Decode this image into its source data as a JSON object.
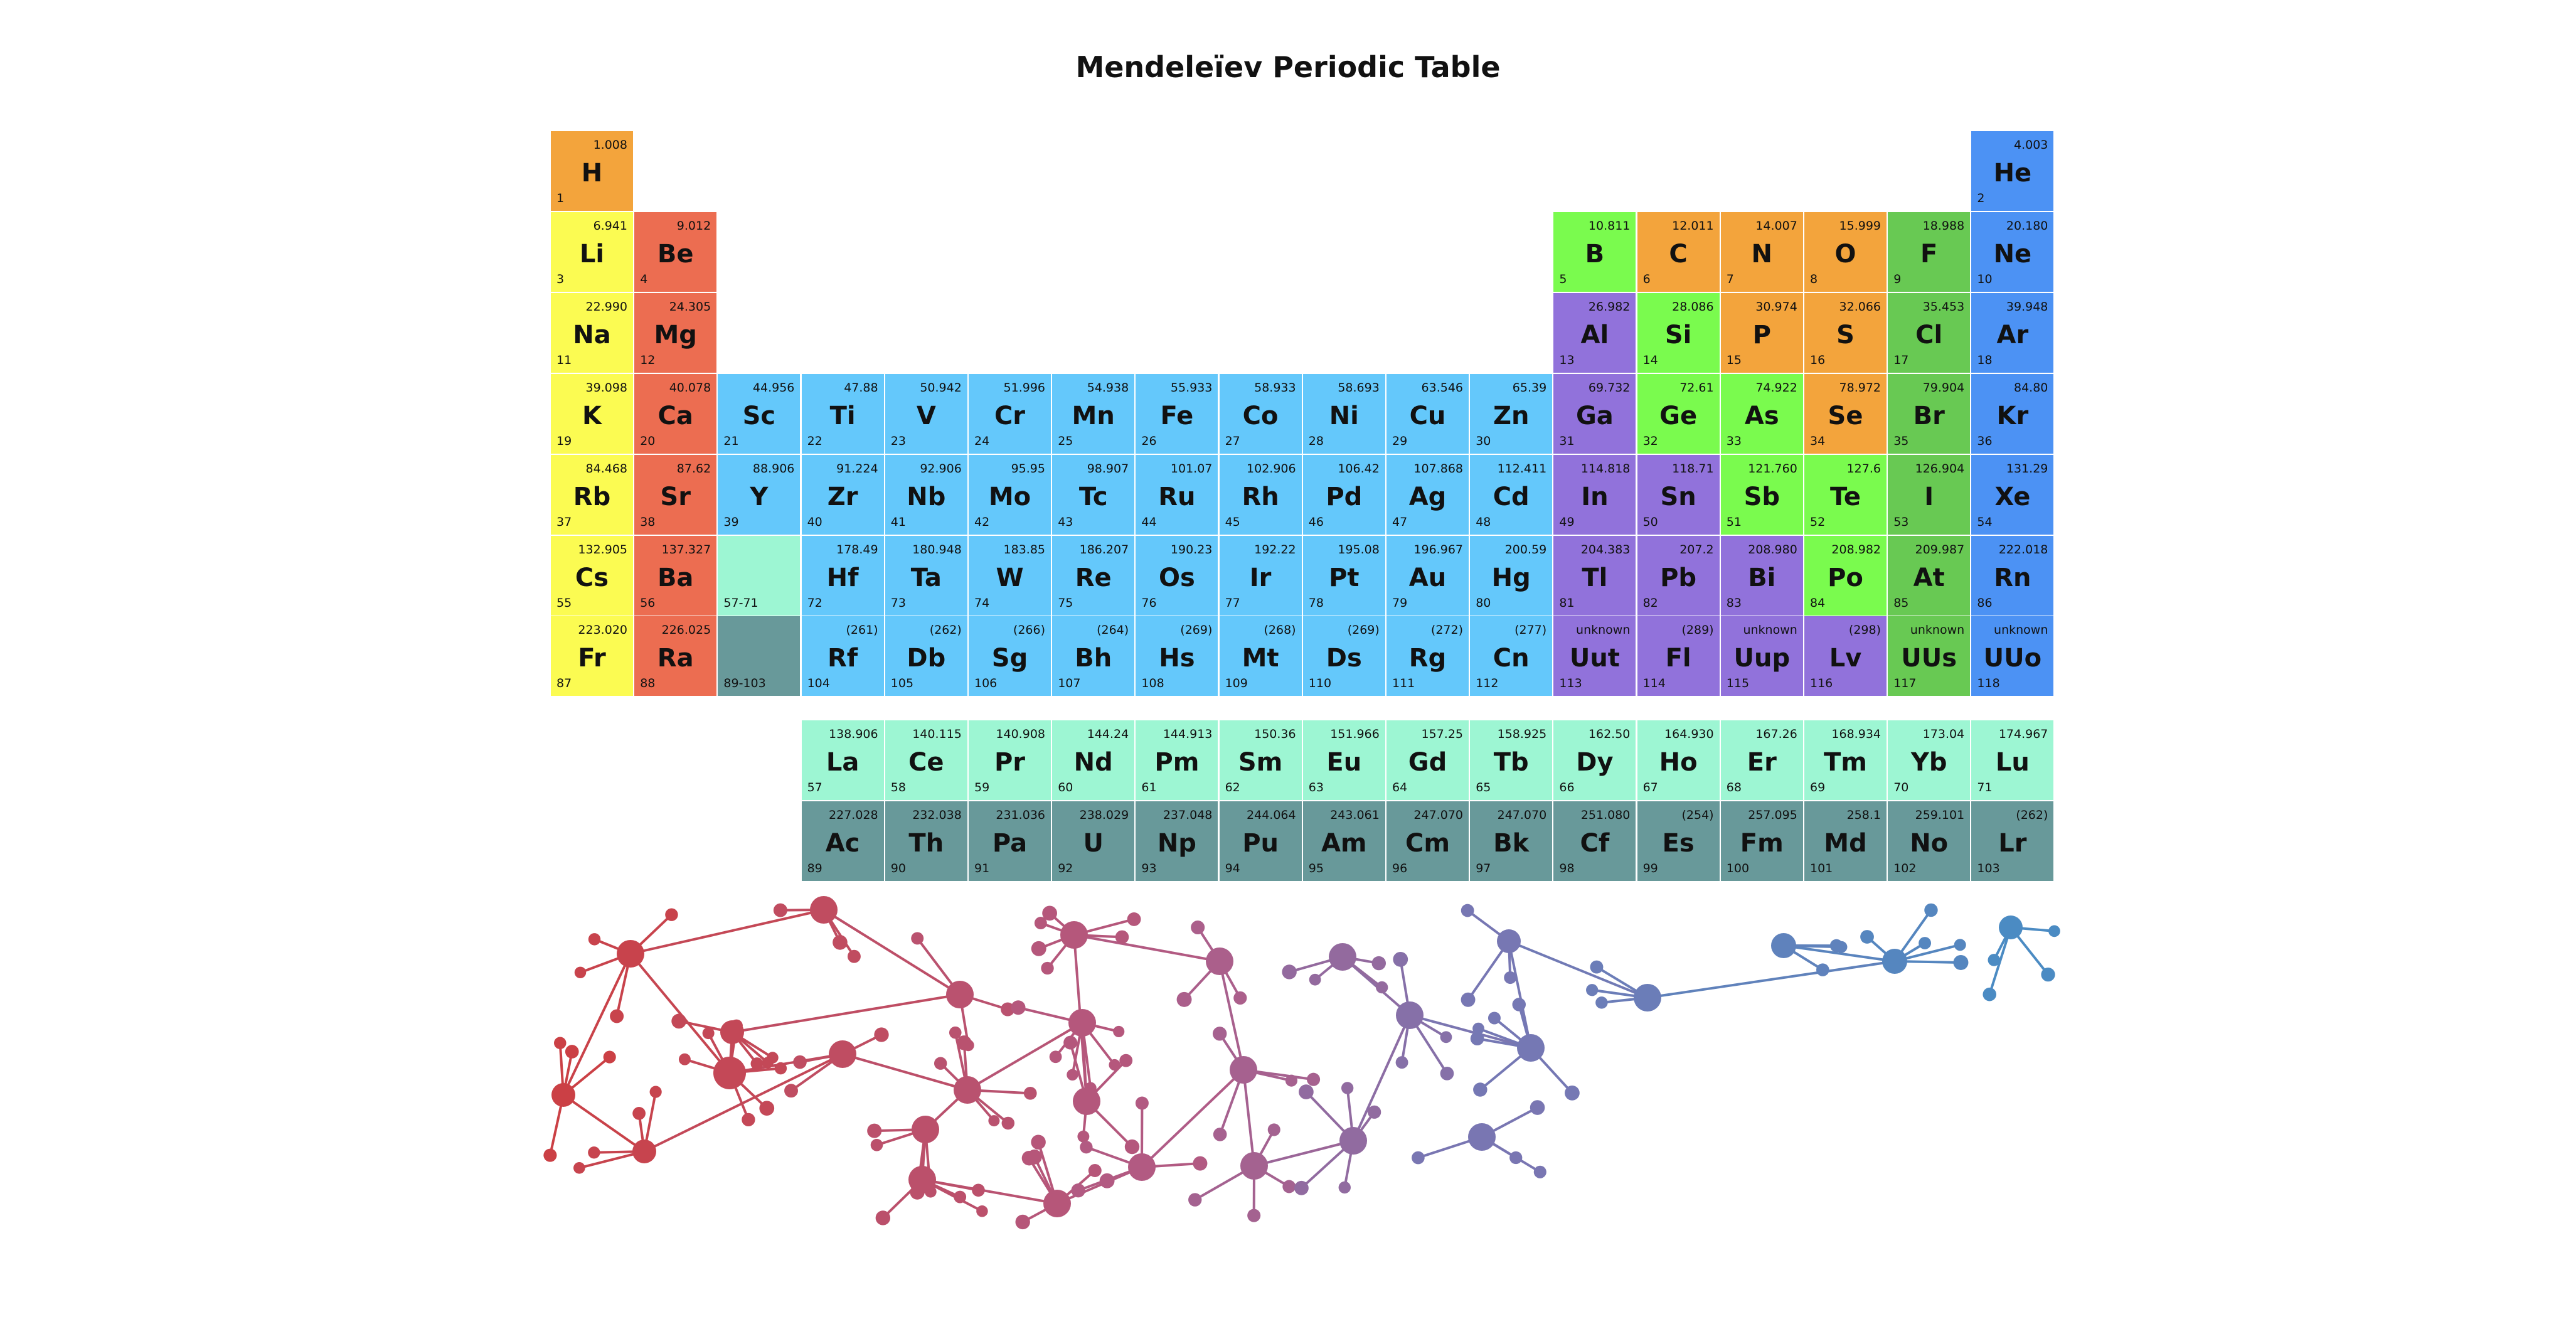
{
  "title": "Mendeleïev Periodic Table",
  "colors": {
    "nonmetal": "#F3A43C",
    "alkali": "#FBFB52",
    "alkaline": "#EC6D51",
    "transition": "#64C8FB",
    "post": "#9172DB",
    "metalloid": "#7AFB4E",
    "halogen": "#68C953",
    "noble": "#4C92F4",
    "lanthanide": "#9DF6D3",
    "actinide": "#68999A"
  },
  "elements": [
    {
      "s": "H",
      "n": "1",
      "w": "1.008",
      "r": 0,
      "c": 0,
      "cat": "nonmetal"
    },
    {
      "s": "He",
      "n": "2",
      "w": "4.003",
      "r": 0,
      "c": 17,
      "cat": "noble"
    },
    {
      "s": "Li",
      "n": "3",
      "w": "6.941",
      "r": 1,
      "c": 0,
      "cat": "alkali"
    },
    {
      "s": "Be",
      "n": "4",
      "w": "9.012",
      "r": 1,
      "c": 1,
      "cat": "alkaline"
    },
    {
      "s": "B",
      "n": "5",
      "w": "10.811",
      "r": 1,
      "c": 12,
      "cat": "metalloid"
    },
    {
      "s": "C",
      "n": "6",
      "w": "12.011",
      "r": 1,
      "c": 13,
      "cat": "nonmetal"
    },
    {
      "s": "N",
      "n": "7",
      "w": "14.007",
      "r": 1,
      "c": 14,
      "cat": "nonmetal"
    },
    {
      "s": "O",
      "n": "8",
      "w": "15.999",
      "r": 1,
      "c": 15,
      "cat": "nonmetal"
    },
    {
      "s": "F",
      "n": "9",
      "w": "18.988",
      "r": 1,
      "c": 16,
      "cat": "halogen"
    },
    {
      "s": "Ne",
      "n": "10",
      "w": "20.180",
      "r": 1,
      "c": 17,
      "cat": "noble"
    },
    {
      "s": "Na",
      "n": "11",
      "w": "22.990",
      "r": 2,
      "c": 0,
      "cat": "alkali"
    },
    {
      "s": "Mg",
      "n": "12",
      "w": "24.305",
      "r": 2,
      "c": 1,
      "cat": "alkaline"
    },
    {
      "s": "Al",
      "n": "13",
      "w": "26.982",
      "r": 2,
      "c": 12,
      "cat": "post"
    },
    {
      "s": "Si",
      "n": "14",
      "w": "28.086",
      "r": 2,
      "c": 13,
      "cat": "metalloid"
    },
    {
      "s": "P",
      "n": "15",
      "w": "30.974",
      "r": 2,
      "c": 14,
      "cat": "nonmetal"
    },
    {
      "s": "S",
      "n": "16",
      "w": "32.066",
      "r": 2,
      "c": 15,
      "cat": "nonmetal"
    },
    {
      "s": "Cl",
      "n": "17",
      "w": "35.453",
      "r": 2,
      "c": 16,
      "cat": "halogen"
    },
    {
      "s": "Ar",
      "n": "18",
      "w": "39.948",
      "r": 2,
      "c": 17,
      "cat": "noble"
    },
    {
      "s": "K",
      "n": "19",
      "w": "39.098",
      "r": 3,
      "c": 0,
      "cat": "alkali"
    },
    {
      "s": "Ca",
      "n": "20",
      "w": "40.078",
      "r": 3,
      "c": 1,
      "cat": "alkaline"
    },
    {
      "s": "Sc",
      "n": "21",
      "w": "44.956",
      "r": 3,
      "c": 2,
      "cat": "transition"
    },
    {
      "s": "Ti",
      "n": "22",
      "w": "47.88",
      "r": 3,
      "c": 3,
      "cat": "transition"
    },
    {
      "s": "V",
      "n": "23",
      "w": "50.942",
      "r": 3,
      "c": 4,
      "cat": "transition"
    },
    {
      "s": "Cr",
      "n": "24",
      "w": "51.996",
      "r": 3,
      "c": 5,
      "cat": "transition"
    },
    {
      "s": "Mn",
      "n": "25",
      "w": "54.938",
      "r": 3,
      "c": 6,
      "cat": "transition"
    },
    {
      "s": "Fe",
      "n": "26",
      "w": "55.933",
      "r": 3,
      "c": 7,
      "cat": "transition"
    },
    {
      "s": "Co",
      "n": "27",
      "w": "58.933",
      "r": 3,
      "c": 8,
      "cat": "transition"
    },
    {
      "s": "Ni",
      "n": "28",
      "w": "58.693",
      "r": 3,
      "c": 9,
      "cat": "transition"
    },
    {
      "s": "Cu",
      "n": "29",
      "w": "63.546",
      "r": 3,
      "c": 10,
      "cat": "transition"
    },
    {
      "s": "Zn",
      "n": "30",
      "w": "65.39",
      "r": 3,
      "c": 11,
      "cat": "transition"
    },
    {
      "s": "Ga",
      "n": "31",
      "w": "69.732",
      "r": 3,
      "c": 12,
      "cat": "post"
    },
    {
      "s": "Ge",
      "n": "32",
      "w": "72.61",
      "r": 3,
      "c": 13,
      "cat": "metalloid"
    },
    {
      "s": "As",
      "n": "33",
      "w": "74.922",
      "r": 3,
      "c": 14,
      "cat": "metalloid"
    },
    {
      "s": "Se",
      "n": "34",
      "w": "78.972",
      "r": 3,
      "c": 15,
      "cat": "nonmetal"
    },
    {
      "s": "Br",
      "n": "35",
      "w": "79.904",
      "r": 3,
      "c": 16,
      "cat": "halogen"
    },
    {
      "s": "Kr",
      "n": "36",
      "w": "84.80",
      "r": 3,
      "c": 17,
      "cat": "noble"
    },
    {
      "s": "Rb",
      "n": "37",
      "w": "84.468",
      "r": 4,
      "c": 0,
      "cat": "alkali"
    },
    {
      "s": "Sr",
      "n": "38",
      "w": "87.62",
      "r": 4,
      "c": 1,
      "cat": "alkaline"
    },
    {
      "s": "Y",
      "n": "39",
      "w": "88.906",
      "r": 4,
      "c": 2,
      "cat": "transition"
    },
    {
      "s": "Zr",
      "n": "40",
      "w": "91.224",
      "r": 4,
      "c": 3,
      "cat": "transition"
    },
    {
      "s": "Nb",
      "n": "41",
      "w": "92.906",
      "r": 4,
      "c": 4,
      "cat": "transition"
    },
    {
      "s": "Mo",
      "n": "42",
      "w": "95.95",
      "r": 4,
      "c": 5,
      "cat": "transition"
    },
    {
      "s": "Tc",
      "n": "43",
      "w": "98.907",
      "r": 4,
      "c": 6,
      "cat": "transition"
    },
    {
      "s": "Ru",
      "n": "44",
      "w": "101.07",
      "r": 4,
      "c": 7,
      "cat": "transition"
    },
    {
      "s": "Rh",
      "n": "45",
      "w": "102.906",
      "r": 4,
      "c": 8,
      "cat": "transition"
    },
    {
      "s": "Pd",
      "n": "46",
      "w": "106.42",
      "r": 4,
      "c": 9,
      "cat": "transition"
    },
    {
      "s": "Ag",
      "n": "47",
      "w": "107.868",
      "r": 4,
      "c": 10,
      "cat": "transition"
    },
    {
      "s": "Cd",
      "n": "48",
      "w": "112.411",
      "r": 4,
      "c": 11,
      "cat": "transition"
    },
    {
      "s": "In",
      "n": "49",
      "w": "114.818",
      "r": 4,
      "c": 12,
      "cat": "post"
    },
    {
      "s": "Sn",
      "n": "50",
      "w": "118.71",
      "r": 4,
      "c": 13,
      "cat": "post"
    },
    {
      "s": "Sb",
      "n": "51",
      "w": "121.760",
      "r": 4,
      "c": 14,
      "cat": "metalloid"
    },
    {
      "s": "Te",
      "n": "52",
      "w": "127.6",
      "r": 4,
      "c": 15,
      "cat": "metalloid"
    },
    {
      "s": "I",
      "n": "53",
      "w": "126.904",
      "r": 4,
      "c": 16,
      "cat": "halogen"
    },
    {
      "s": "Xe",
      "n": "54",
      "w": "131.29",
      "r": 4,
      "c": 17,
      "cat": "noble"
    },
    {
      "s": "Cs",
      "n": "55",
      "w": "132.905",
      "r": 5,
      "c": 0,
      "cat": "alkali"
    },
    {
      "s": "Ba",
      "n": "56",
      "w": "137.327",
      "r": 5,
      "c": 1,
      "cat": "alkaline"
    },
    {
      "s": "",
      "n": "57-71",
      "w": "",
      "r": 5,
      "c": 2,
      "cat": "lanthanide"
    },
    {
      "s": "Hf",
      "n": "72",
      "w": "178.49",
      "r": 5,
      "c": 3,
      "cat": "transition"
    },
    {
      "s": "Ta",
      "n": "73",
      "w": "180.948",
      "r": 5,
      "c": 4,
      "cat": "transition"
    },
    {
      "s": "W",
      "n": "74",
      "w": "183.85",
      "r": 5,
      "c": 5,
      "cat": "transition"
    },
    {
      "s": "Re",
      "n": "75",
      "w": "186.207",
      "r": 5,
      "c": 6,
      "cat": "transition"
    },
    {
      "s": "Os",
      "n": "76",
      "w": "190.23",
      "r": 5,
      "c": 7,
      "cat": "transition"
    },
    {
      "s": "Ir",
      "n": "77",
      "w": "192.22",
      "r": 5,
      "c": 8,
      "cat": "transition"
    },
    {
      "s": "Pt",
      "n": "78",
      "w": "195.08",
      "r": 5,
      "c": 9,
      "cat": "transition"
    },
    {
      "s": "Au",
      "n": "79",
      "w": "196.967",
      "r": 5,
      "c": 10,
      "cat": "transition"
    },
    {
      "s": "Hg",
      "n": "80",
      "w": "200.59",
      "r": 5,
      "c": 11,
      "cat": "transition"
    },
    {
      "s": "Tl",
      "n": "81",
      "w": "204.383",
      "r": 5,
      "c": 12,
      "cat": "post"
    },
    {
      "s": "Pb",
      "n": "82",
      "w": "207.2",
      "r": 5,
      "c": 13,
      "cat": "post"
    },
    {
      "s": "Bi",
      "n": "83",
      "w": "208.980",
      "r": 5,
      "c": 14,
      "cat": "post"
    },
    {
      "s": "Po",
      "n": "84",
      "w": "208.982",
      "r": 5,
      "c": 15,
      "cat": "metalloid"
    },
    {
      "s": "At",
      "n": "85",
      "w": "209.987",
      "r": 5,
      "c": 16,
      "cat": "halogen"
    },
    {
      "s": "Rn",
      "n": "86",
      "w": "222.018",
      "r": 5,
      "c": 17,
      "cat": "noble"
    },
    {
      "s": "Fr",
      "n": "87",
      "w": "223.020",
      "r": 6,
      "c": 0,
      "cat": "alkali"
    },
    {
      "s": "Ra",
      "n": "88",
      "w": "226.025",
      "r": 6,
      "c": 1,
      "cat": "alkaline"
    },
    {
      "s": "",
      "n": "89-103",
      "w": "",
      "r": 6,
      "c": 2,
      "cat": "actinide"
    },
    {
      "s": "Rf",
      "n": "104",
      "w": "(261)",
      "r": 6,
      "c": 3,
      "cat": "transition"
    },
    {
      "s": "Db",
      "n": "105",
      "w": "(262)",
      "r": 6,
      "c": 4,
      "cat": "transition"
    },
    {
      "s": "Sg",
      "n": "106",
      "w": "(266)",
      "r": 6,
      "c": 5,
      "cat": "transition"
    },
    {
      "s": "Bh",
      "n": "107",
      "w": "(264)",
      "r": 6,
      "c": 6,
      "cat": "transition"
    },
    {
      "s": "Hs",
      "n": "108",
      "w": "(269)",
      "r": 6,
      "c": 7,
      "cat": "transition"
    },
    {
      "s": "Mt",
      "n": "109",
      "w": "(268)",
      "r": 6,
      "c": 8,
      "cat": "transition"
    },
    {
      "s": "Ds",
      "n": "110",
      "w": "(269)",
      "r": 6,
      "c": 9,
      "cat": "transition"
    },
    {
      "s": "Rg",
      "n": "111",
      "w": "(272)",
      "r": 6,
      "c": 10,
      "cat": "transition"
    },
    {
      "s": "Cn",
      "n": "112",
      "w": "(277)",
      "r": 6,
      "c": 11,
      "cat": "transition"
    },
    {
      "s": "Uut",
      "n": "113",
      "w": "unknown",
      "r": 6,
      "c": 12,
      "cat": "post"
    },
    {
      "s": "Fl",
      "n": "114",
      "w": "(289)",
      "r": 6,
      "c": 13,
      "cat": "post"
    },
    {
      "s": "Uup",
      "n": "115",
      "w": "unknown",
      "r": 6,
      "c": 14,
      "cat": "post"
    },
    {
      "s": "Lv",
      "n": "116",
      "w": "(298)",
      "r": 6,
      "c": 15,
      "cat": "post"
    },
    {
      "s": "UUs",
      "n": "117",
      "w": "unknown",
      "r": 6,
      "c": 16,
      "cat": "halogen"
    },
    {
      "s": "UUo",
      "n": "118",
      "w": "unknown",
      "r": 6,
      "c": 17,
      "cat": "noble"
    },
    {
      "s": "La",
      "n": "57",
      "w": "138.906",
      "r": 7,
      "c": 3,
      "cat": "lanthanide"
    },
    {
      "s": "Ce",
      "n": "58",
      "w": "140.115",
      "r": 7,
      "c": 4,
      "cat": "lanthanide"
    },
    {
      "s": "Pr",
      "n": "59",
      "w": "140.908",
      "r": 7,
      "c": 5,
      "cat": "lanthanide"
    },
    {
      "s": "Nd",
      "n": "60",
      "w": "144.24",
      "r": 7,
      "c": 6,
      "cat": "lanthanide"
    },
    {
      "s": "Pm",
      "n": "61",
      "w": "144.913",
      "r": 7,
      "c": 7,
      "cat": "lanthanide"
    },
    {
      "s": "Sm",
      "n": "62",
      "w": "150.36",
      "r": 7,
      "c": 8,
      "cat": "lanthanide"
    },
    {
      "s": "Eu",
      "n": "63",
      "w": "151.966",
      "r": 7,
      "c": 9,
      "cat": "lanthanide"
    },
    {
      "s": "Gd",
      "n": "64",
      "w": "157.25",
      "r": 7,
      "c": 10,
      "cat": "lanthanide"
    },
    {
      "s": "Tb",
      "n": "65",
      "w": "158.925",
      "r": 7,
      "c": 11,
      "cat": "lanthanide"
    },
    {
      "s": "Dy",
      "n": "66",
      "w": "162.50",
      "r": 7,
      "c": 12,
      "cat": "lanthanide"
    },
    {
      "s": "Ho",
      "n": "67",
      "w": "164.930",
      "r": 7,
      "c": 13,
      "cat": "lanthanide"
    },
    {
      "s": "Er",
      "n": "68",
      "w": "167.26",
      "r": 7,
      "c": 14,
      "cat": "lanthanide"
    },
    {
      "s": "Tm",
      "n": "69",
      "w": "168.934",
      "r": 7,
      "c": 15,
      "cat": "lanthanide"
    },
    {
      "s": "Yb",
      "n": "70",
      "w": "173.04",
      "r": 7,
      "c": 16,
      "cat": "lanthanide"
    },
    {
      "s": "Lu",
      "n": "71",
      "w": "174.967",
      "r": 7,
      "c": 17,
      "cat": "lanthanide"
    },
    {
      "s": "Ac",
      "n": "89",
      "w": "227.028",
      "r": 8,
      "c": 3,
      "cat": "actinide"
    },
    {
      "s": "Th",
      "n": "90",
      "w": "232.038",
      "r": 8,
      "c": 4,
      "cat": "actinide"
    },
    {
      "s": "Pa",
      "n": "91",
      "w": "231.036",
      "r": 8,
      "c": 5,
      "cat": "actinide"
    },
    {
      "s": "U",
      "n": "92",
      "w": "238.029",
      "r": 8,
      "c": 6,
      "cat": "actinide"
    },
    {
      "s": "Np",
      "n": "93",
      "w": "237.048",
      "r": 8,
      "c": 7,
      "cat": "actinide"
    },
    {
      "s": "Pu",
      "n": "94",
      "w": "244.064",
      "r": 8,
      "c": 8,
      "cat": "actinide"
    },
    {
      "s": "Am",
      "n": "95",
      "w": "243.061",
      "r": 8,
      "c": 9,
      "cat": "actinide"
    },
    {
      "s": "Cm",
      "n": "96",
      "w": "247.070",
      "r": 8,
      "c": 10,
      "cat": "actinide"
    },
    {
      "s": "Bk",
      "n": "97",
      "w": "247.070",
      "r": 8,
      "c": 11,
      "cat": "actinide"
    },
    {
      "s": "Cf",
      "n": "98",
      "w": "251.080",
      "r": 8,
      "c": 12,
      "cat": "actinide"
    },
    {
      "s": "Es",
      "n": "99",
      "w": "(254)",
      "r": 8,
      "c": 13,
      "cat": "actinide"
    },
    {
      "s": "Fm",
      "n": "100",
      "w": "257.095",
      "r": 8,
      "c": 14,
      "cat": "actinide"
    },
    {
      "s": "Md",
      "n": "101",
      "w": "258.1",
      "r": 8,
      "c": 15,
      "cat": "actinide"
    },
    {
      "s": "No",
      "n": "102",
      "w": "259.101",
      "r": 8,
      "c": 16,
      "cat": "actinide"
    },
    {
      "s": "Lr",
      "n": "103",
      "w": "(262)",
      "r": 8,
      "c": 17,
      "cat": "actinide"
    }
  ]
}
